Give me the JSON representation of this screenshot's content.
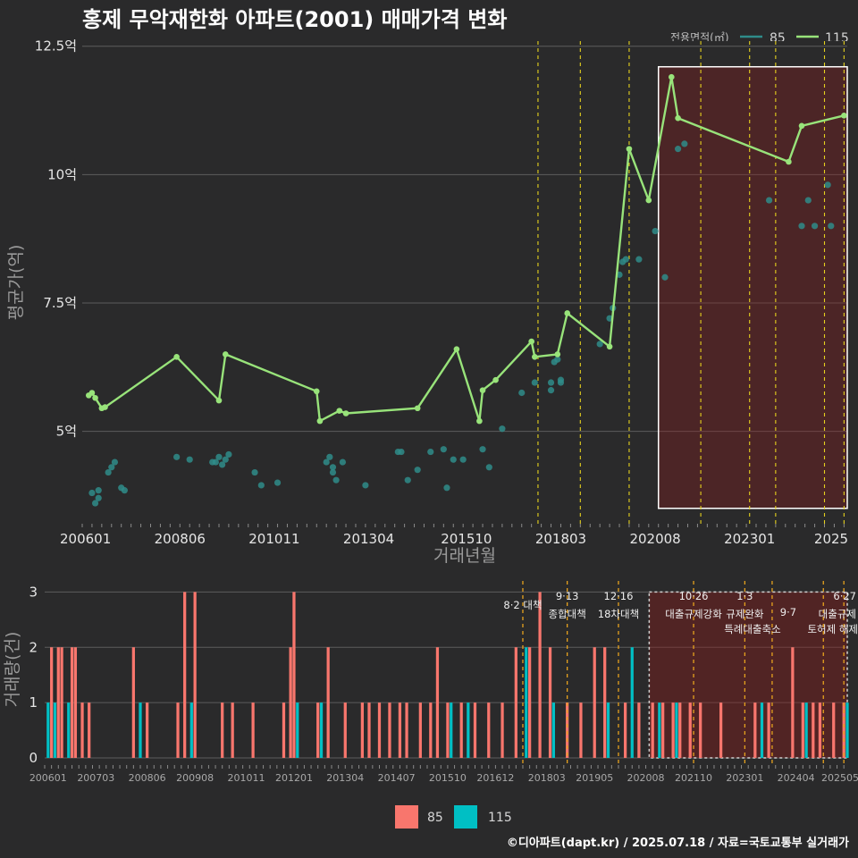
{
  "title": "홍제 무악재한화 아파트(2001) 매매가격 변화",
  "footer": "©디아파트(dapt.kr) / 2025.07.18 / 자료=국토교통부 실거래가",
  "legend": {
    "title": "전용면적(㎡)",
    "items": [
      {
        "name": "85",
        "color": "#2f8c8a"
      },
      {
        "name": "115",
        "color": "#98e37a"
      }
    ]
  },
  "bottom_legend": [
    {
      "name": "85",
      "color": "#f8766d"
    },
    {
      "name": "115",
      "color": "#00bfc4"
    }
  ],
  "chart_data": [
    {
      "type": "line",
      "xlabel": "거래년월",
      "ylabel": "평균가(억)",
      "x_tick_labels": [
        "200601",
        "200806",
        "201011",
        "201304",
        "201510",
        "201803",
        "202008",
        "202301",
        "2025"
      ],
      "x_tick_positions": [
        "2006-01",
        "2008-06",
        "2010-11",
        "2013-04",
        "2015-10",
        "2018-03",
        "2020-08",
        "2023-01",
        "2025-06"
      ],
      "y_tick_labels": [
        "5억",
        "7.5억",
        "10억",
        "12.5억"
      ],
      "y_tick_values": [
        5,
        7.5,
        10,
        12.5
      ],
      "ylim": [
        3.2,
        12.6
      ],
      "xlim": [
        "2005-12",
        "2025-07"
      ],
      "grid": "horizontal",
      "policy_lines": [
        "2017-08",
        "2018-09",
        "2019-12",
        "2021-10",
        "2023-01",
        "2023-09",
        "2024-12",
        "2025-06"
      ],
      "highlight": {
        "from": "2020-09",
        "to": "2025-07",
        "ymin": 3.5,
        "ymax": 12.1
      },
      "series": [
        {
          "name": "115",
          "color": "#98e37a",
          "mode": "line",
          "points": [
            [
              "2006-02",
              5.7
            ],
            [
              "2006-03",
              5.75
            ],
            [
              "2006-04",
              5.65
            ],
            [
              "2006-06",
              5.45
            ],
            [
              "2006-07",
              5.47
            ],
            [
              "2008-05",
              6.45
            ],
            [
              "2009-06",
              5.6
            ],
            [
              "2009-08",
              6.5
            ],
            [
              "2011-12",
              5.78
            ],
            [
              "2012-01",
              5.2
            ],
            [
              "2012-07",
              5.4
            ],
            [
              "2012-09",
              5.35
            ],
            [
              "2014-07",
              5.45
            ],
            [
              "2015-07",
              6.6
            ],
            [
              "2016-02",
              5.2
            ],
            [
              "2016-03",
              5.8
            ],
            [
              "2016-07",
              6.0
            ],
            [
              "2017-06",
              6.75
            ],
            [
              "2017-07",
              6.45
            ],
            [
              "2018-02",
              6.5
            ],
            [
              "2018-05",
              7.3
            ],
            [
              "2019-06",
              6.65
            ],
            [
              "2019-12",
              10.5
            ],
            [
              "2020-06",
              9.5
            ],
            [
              "2021-01",
              11.9
            ],
            [
              "2021-03",
              11.1
            ],
            [
              "2024-01",
              10.25
            ],
            [
              "2024-05",
              10.95
            ],
            [
              "2025-06",
              11.15
            ]
          ]
        },
        {
          "name": "85",
          "color": "#2f8c8a",
          "mode": "scatter",
          "points": [
            [
              "2006-03",
              3.8
            ],
            [
              "2006-04",
              3.6
            ],
            [
              "2006-05",
              3.7
            ],
            [
              "2006-05",
              3.85
            ],
            [
              "2006-08",
              4.2
            ],
            [
              "2006-09",
              4.3
            ],
            [
              "2006-10",
              4.4
            ],
            [
              "2007-01",
              3.85
            ],
            [
              "2006-12",
              3.9
            ],
            [
              "2008-05",
              4.5
            ],
            [
              "2008-09",
              4.45
            ],
            [
              "2009-04",
              4.4
            ],
            [
              "2009-05",
              4.4
            ],
            [
              "2009-06",
              4.5
            ],
            [
              "2009-07",
              4.35
            ],
            [
              "2009-08",
              4.45
            ],
            [
              "2009-09",
              4.55
            ],
            [
              "2010-05",
              4.2
            ],
            [
              "2010-07",
              3.95
            ],
            [
              "2010-12",
              4.0
            ],
            [
              "2012-03",
              4.4
            ],
            [
              "2012-04",
              4.5
            ],
            [
              "2012-05",
              4.3
            ],
            [
              "2012-05",
              4.2
            ],
            [
              "2012-06",
              4.05
            ],
            [
              "2012-08",
              4.4
            ],
            [
              "2013-03",
              3.95
            ],
            [
              "2014-01",
              4.6
            ],
            [
              "2014-02",
              4.6
            ],
            [
              "2014-04",
              4.05
            ],
            [
              "2014-07",
              4.25
            ],
            [
              "2014-11",
              4.6
            ],
            [
              "2015-03",
              4.65
            ],
            [
              "2015-04",
              3.9
            ],
            [
              "2015-06",
              4.45
            ],
            [
              "2015-09",
              4.45
            ],
            [
              "2016-03",
              4.65
            ],
            [
              "2016-05",
              4.3
            ],
            [
              "2016-09",
              5.05
            ],
            [
              "2017-03",
              5.75
            ],
            [
              "2017-07",
              5.95
            ],
            [
              "2017-12",
              5.8
            ],
            [
              "2017-12",
              5.95
            ],
            [
              "2018-01",
              6.35
            ],
            [
              "2018-02",
              6.4
            ],
            [
              "2018-03",
              5.95
            ],
            [
              "2018-03",
              6.0
            ],
            [
              "2019-03",
              6.7
            ],
            [
              "2019-06",
              7.2
            ],
            [
              "2019-07",
              7.4
            ],
            [
              "2019-09",
              8.05
            ],
            [
              "2019-10",
              8.3
            ],
            [
              "2019-11",
              8.35
            ],
            [
              "2020-03",
              8.35
            ],
            [
              "2020-08",
              8.9
            ],
            [
              "2020-11",
              8.0
            ],
            [
              "2021-03",
              10.5
            ],
            [
              "2021-05",
              10.6
            ],
            [
              "2023-07",
              9.5
            ],
            [
              "2024-05",
              9.0
            ],
            [
              "2024-07",
              9.5
            ],
            [
              "2024-09",
              9.0
            ],
            [
              "2025-01",
              9.8
            ],
            [
              "2025-02",
              9.0
            ]
          ]
        }
      ]
    },
    {
      "type": "bar",
      "ylabel": "거래량(건)",
      "y_tick_labels": [
        "0",
        "1",
        "2",
        "3"
      ],
      "y_tick_values": [
        0,
        1,
        2,
        3
      ],
      "ylim": [
        0,
        3.2
      ],
      "grid": "horizontal",
      "x_tick_labels": [
        "200601",
        "200703",
        "200806",
        "200908",
        "201011",
        "201201",
        "201304",
        "201407",
        "201510",
        "201612",
        "201803",
        "201905",
        "202008",
        "202110",
        "202301",
        "202404",
        "202505"
      ],
      "x_tick_positions": [
        "2006-01",
        "2007-03",
        "2008-06",
        "2009-08",
        "2010-11",
        "2012-01",
        "2013-04",
        "2014-07",
        "2015-10",
        "2016-12",
        "2018-03",
        "2019-05",
        "2020-08",
        "2021-10",
        "2023-01",
        "2024-04",
        "2025-05"
      ],
      "highlight": {
        "from": "2020-09",
        "to": "2025-07"
      },
      "policy_annotations": [
        {
          "date": "2017-08",
          "date_label": "",
          "text": "8·2 대책"
        },
        {
          "date": "2018-09",
          "date_label": "9·13",
          "text": "종합대책"
        },
        {
          "date": "2019-12",
          "date_label": "12·16",
          "text": "18차대책"
        },
        {
          "date": "2021-10",
          "date_label": "10·26",
          "text": "대출규제강화"
        },
        {
          "date": "2023-01",
          "date_label": "1·3",
          "text": "규제완화"
        },
        {
          "date": "2023-09",
          "date_label": "9·7",
          "text": "특례대출축소"
        },
        {
          "date": "2024-12",
          "date_label": "",
          "text": "토허제 해제"
        },
        {
          "date": "2025-06",
          "date_label": "6·27",
          "text": "대출규제"
        }
      ],
      "series": [
        {
          "name": "85",
          "color": "#f8766d",
          "bars": [
            [
              "2006-02",
              2
            ],
            [
              "2006-04",
              2
            ],
            [
              "2006-05",
              2
            ],
            [
              "2006-08",
              2
            ],
            [
              "2006-09",
              2
            ],
            [
              "2006-11",
              1
            ],
            [
              "2007-01",
              1
            ],
            [
              "2008-02",
              2
            ],
            [
              "2008-06",
              1
            ],
            [
              "2009-03",
              1
            ],
            [
              "2009-05",
              3
            ],
            [
              "2009-08",
              3
            ],
            [
              "2010-04",
              1
            ],
            [
              "2010-07",
              1
            ],
            [
              "2011-01",
              1
            ],
            [
              "2011-10",
              1
            ],
            [
              "2011-12",
              2
            ],
            [
              "2012-01",
              3
            ],
            [
              "2012-08",
              1
            ],
            [
              "2012-11",
              2
            ],
            [
              "2013-04",
              1
            ],
            [
              "2013-09",
              1
            ],
            [
              "2013-11",
              1
            ],
            [
              "2014-02",
              1
            ],
            [
              "2014-05",
              1
            ],
            [
              "2014-08",
              1
            ],
            [
              "2014-10",
              1
            ],
            [
              "2015-02",
              1
            ],
            [
              "2015-05",
              1
            ],
            [
              "2015-07",
              2
            ],
            [
              "2015-10",
              1
            ],
            [
              "2016-02",
              1
            ],
            [
              "2016-06",
              1
            ],
            [
              "2016-10",
              1
            ],
            [
              "2017-02",
              1
            ],
            [
              "2017-06",
              2
            ],
            [
              "2017-10",
              2
            ],
            [
              "2018-01",
              3
            ],
            [
              "2018-04",
              2
            ],
            [
              "2018-09",
              1
            ],
            [
              "2019-01",
              1
            ],
            [
              "2019-05",
              2
            ],
            [
              "2019-08",
              2
            ],
            [
              "2020-02",
              1
            ],
            [
              "2020-06",
              1
            ],
            [
              "2020-10",
              1
            ],
            [
              "2021-01",
              1
            ],
            [
              "2021-04",
              1
            ],
            [
              "2021-06",
              1
            ],
            [
              "2021-09",
              1
            ],
            [
              "2021-12",
              1
            ],
            [
              "2022-06",
              1
            ],
            [
              "2023-04",
              1
            ],
            [
              "2023-08",
              1
            ],
            [
              "2024-03",
              2
            ],
            [
              "2024-06",
              1
            ],
            [
              "2024-09",
              1
            ],
            [
              "2024-11",
              1
            ],
            [
              "2025-03",
              1
            ],
            [
              "2025-06",
              1
            ]
          ]
        },
        {
          "name": "115",
          "color": "#00bfc4",
          "bars": [
            [
              "2006-01",
              1
            ],
            [
              "2006-03",
              1
            ],
            [
              "2006-07",
              1
            ],
            [
              "2008-04",
              1
            ],
            [
              "2009-07",
              1
            ],
            [
              "2012-02",
              1
            ],
            [
              "2012-09",
              1
            ],
            [
              "2015-11",
              1
            ],
            [
              "2016-04",
              1
            ],
            [
              "2017-09",
              2
            ],
            [
              "2018-05",
              1
            ],
            [
              "2019-09",
              1
            ],
            [
              "2020-04",
              2
            ],
            [
              "2020-12",
              1
            ],
            [
              "2021-05",
              1
            ],
            [
              "2023-06",
              1
            ],
            [
              "2024-07",
              1
            ],
            [
              "2025-07",
              1
            ]
          ]
        }
      ]
    }
  ]
}
